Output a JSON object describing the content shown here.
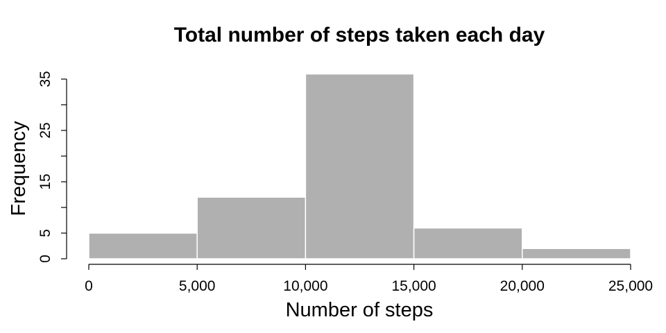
{
  "chart_data": {
    "type": "bar",
    "title": "Total number of steps taken each day",
    "xlabel": "Number of steps",
    "ylabel": "Frequency",
    "bins": [
      {
        "from": 0,
        "to": 5000,
        "count": 5
      },
      {
        "from": 5000,
        "to": 10000,
        "count": 12
      },
      {
        "from": 10000,
        "to": 15000,
        "count": 36
      },
      {
        "from": 15000,
        "to": 20000,
        "count": 6
      },
      {
        "from": 20000,
        "to": 25000,
        "count": 2
      }
    ],
    "xlim": [
      0,
      25000
    ],
    "ylim": [
      0,
      35
    ],
    "x_ticks": [
      0,
      5000,
      10000,
      15000,
      20000,
      25000
    ],
    "x_tick_labels": [
      "0",
      "5,000",
      "10,000",
      "15,000",
      "20,000",
      "25,000"
    ],
    "y_ticks": [
      0,
      5,
      10,
      15,
      20,
      25,
      30,
      35
    ],
    "y_tick_labels": [
      "0",
      "5",
      "",
      "15",
      "",
      "25",
      "",
      "35"
    ],
    "bar_color": "#b0b0b0",
    "bar_edge_color": "#ffffff",
    "grid": false,
    "legend": "none"
  }
}
